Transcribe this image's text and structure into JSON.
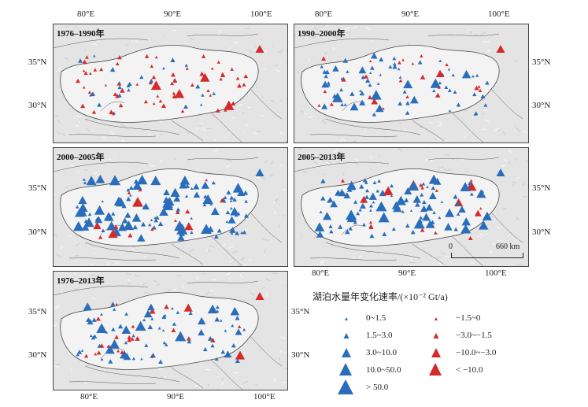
{
  "colors": {
    "increase": "#2a6ebb",
    "decrease": "#d62a2a",
    "land": "#e4e4e4",
    "plateau": "#f3f3f3",
    "border": "#444444"
  },
  "panels": [
    {
      "id": "p1",
      "title": "1976–1990年",
      "x_ticks_top": [
        "80°E",
        "90°E",
        "100°E"
      ],
      "y_ticks_left": [
        "35°N",
        "30°N"
      ]
    },
    {
      "id": "p2",
      "title": "1990–2000年",
      "x_ticks_top": [
        "80°E",
        "90°E",
        "100°E"
      ],
      "y_ticks_right": [
        "35°N",
        "30°N"
      ]
    },
    {
      "id": "p3",
      "title": "2000–2005年",
      "y_ticks_left": [
        "35°N",
        "30°N"
      ]
    },
    {
      "id": "p4",
      "title": "2005–2013年",
      "y_ticks_right": [
        "35°N",
        "30°N"
      ],
      "x_ticks_bottom": [
        "80°E",
        "90°E",
        "100°E"
      ],
      "scale": {
        "left": "0",
        "right": "660",
        "unit": "km"
      }
    },
    {
      "id": "p5",
      "title": "1976–2013年",
      "y_ticks_left": [
        "35°N",
        "30°N"
      ],
      "y_ticks_right": [
        "35°N",
        "30°N"
      ],
      "x_ticks_bottom": [
        "80°E",
        "90°E",
        "100°E"
      ]
    }
  ],
  "legend": {
    "title": "湖泊水量年变化速率/(×10⁻² Gt/a)",
    "increase": [
      "0~1.5",
      "1.5~3.0",
      "3.0~10.0",
      "10.0~50.0",
      "> 50.0"
    ],
    "decrease": [
      "−1.5~0",
      "−3.0~−1.5",
      "−10.0~−3.0",
      "< −10.0"
    ]
  }
}
